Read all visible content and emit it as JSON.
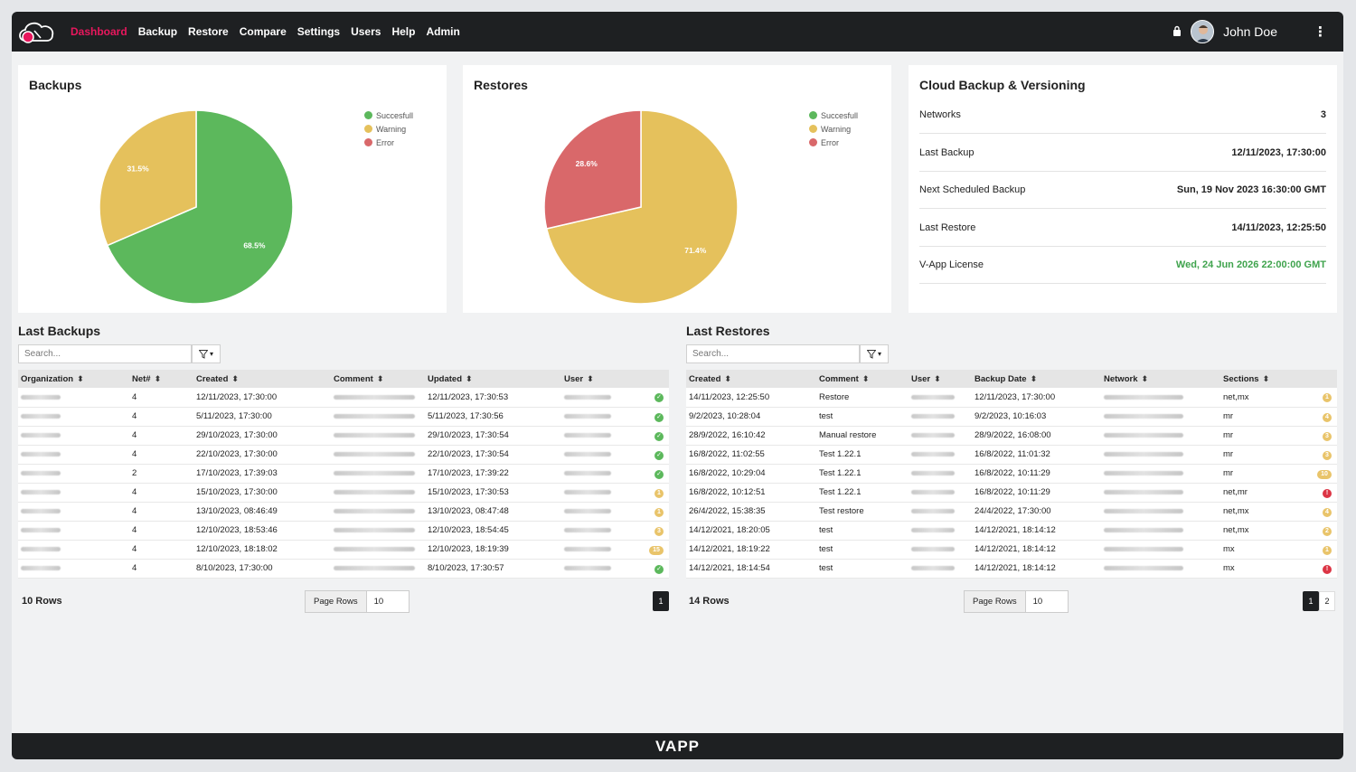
{
  "nav": {
    "items": [
      {
        "label": "Dashboard",
        "active": true
      },
      {
        "label": "Backup"
      },
      {
        "label": "Restore"
      },
      {
        "label": "Compare"
      },
      {
        "label": "Settings"
      },
      {
        "label": "Users"
      },
      {
        "label": "Help"
      },
      {
        "label": "Admin"
      }
    ],
    "user_name": "John Doe",
    "icons": [
      "lock-icon",
      "avatar",
      "kebab-menu-icon"
    ]
  },
  "colors": {
    "success": "#5cb85c",
    "warning": "#e5c15c",
    "error": "#d9686a",
    "accent": "#e8175d",
    "dark": "#1e2022",
    "license_green": "#3fa34d"
  },
  "backups_card": {
    "title": "Backups"
  },
  "restores_card": {
    "title": "Restores"
  },
  "legend": [
    "Succesfull",
    "Warning",
    "Error"
  ],
  "chart_data": [
    {
      "type": "pie",
      "title": "Backups",
      "categories": [
        "Succesfull",
        "Warning",
        "Error"
      ],
      "values": [
        68.5,
        31.5,
        0
      ],
      "labels": [
        "68.5%",
        "31.5%",
        ""
      ],
      "legend": "top-right"
    },
    {
      "type": "pie",
      "title": "Restores",
      "categories": [
        "Succesfull",
        "Warning",
        "Error"
      ],
      "values": [
        0,
        71.4,
        28.6
      ],
      "labels": [
        "",
        "71.4%",
        "28.6%"
      ],
      "legend": "top-right"
    }
  ],
  "cloud": {
    "title": "Cloud Backup & Versioning",
    "rows": [
      {
        "label": "Networks",
        "value": "3"
      },
      {
        "label": "Last Backup",
        "value": "12/11/2023, 17:30:00"
      },
      {
        "label": "Next Scheduled Backup",
        "value": "Sun, 19 Nov 2023 16:30:00 GMT"
      },
      {
        "label": "Last Restore",
        "value": "14/11/2023, 12:25:50"
      },
      {
        "label": "V-App License",
        "value": "Wed, 24 Jun 2026 22:00:00 GMT",
        "highlight": true
      }
    ]
  },
  "last_backups": {
    "title": "Last Backups",
    "search_placeholder": "Search...",
    "columns": [
      "Organization",
      "Net#",
      "Created",
      "Comment",
      "Updated",
      "User"
    ],
    "rows": [
      {
        "net": "4",
        "created": "12/11/2023, 17:30:00",
        "updated": "12/11/2023, 17:30:53",
        "status": "ok",
        "badge": ""
      },
      {
        "net": "4",
        "created": "5/11/2023, 17:30:00",
        "updated": "5/11/2023, 17:30:56",
        "status": "ok",
        "badge": ""
      },
      {
        "net": "4",
        "created": "29/10/2023, 17:30:00",
        "updated": "29/10/2023, 17:30:54",
        "status": "ok",
        "badge": ""
      },
      {
        "net": "4",
        "created": "22/10/2023, 17:30:00",
        "updated": "22/10/2023, 17:30:54",
        "status": "ok",
        "badge": ""
      },
      {
        "net": "2",
        "created": "17/10/2023, 17:39:03",
        "updated": "17/10/2023, 17:39:22",
        "status": "ok",
        "badge": ""
      },
      {
        "net": "4",
        "created": "15/10/2023, 17:30:00",
        "updated": "15/10/2023, 17:30:53",
        "status": "warn",
        "badge": "1"
      },
      {
        "net": "4",
        "created": "13/10/2023, 08:46:49",
        "updated": "13/10/2023, 08:47:48",
        "status": "warn",
        "badge": "1"
      },
      {
        "net": "4",
        "created": "12/10/2023, 18:53:46",
        "updated": "12/10/2023, 18:54:45",
        "status": "warn",
        "badge": "3"
      },
      {
        "net": "4",
        "created": "12/10/2023, 18:18:02",
        "updated": "12/10/2023, 18:19:39",
        "status": "warn",
        "badge": "15"
      },
      {
        "net": "4",
        "created": "8/10/2023, 17:30:00",
        "updated": "8/10/2023, 17:30:57",
        "status": "ok",
        "badge": ""
      }
    ],
    "row_count": "10 Rows",
    "page_rows_label": "Page Rows",
    "page_rows_value": "10",
    "pages": [
      "1"
    ]
  },
  "last_restores": {
    "title": "Last Restores",
    "search_placeholder": "Search...",
    "columns": [
      "Created",
      "Comment",
      "User",
      "Backup Date",
      "Network",
      "Sections"
    ],
    "rows": [
      {
        "created": "14/11/2023, 12:25:50",
        "comment": "Restore",
        "backup_date": "12/11/2023, 17:30:00",
        "sections": "net,mx",
        "status": "warn",
        "badge": "1"
      },
      {
        "created": "9/2/2023, 10:28:04",
        "comment": "test",
        "backup_date": "9/2/2023, 10:16:03",
        "sections": "mr",
        "status": "warn",
        "badge": "4"
      },
      {
        "created": "28/9/2022, 16:10:42",
        "comment": "Manual restore",
        "backup_date": "28/9/2022, 16:08:00",
        "sections": "mr",
        "status": "warn",
        "badge": "3"
      },
      {
        "created": "16/8/2022, 11:02:55",
        "comment": "Test 1.22.1",
        "backup_date": "16/8/2022, 11:01:32",
        "sections": "mr",
        "status": "warn",
        "badge": "3"
      },
      {
        "created": "16/8/2022, 10:29:04",
        "comment": "Test 1.22.1",
        "backup_date": "16/8/2022, 10:11:29",
        "sections": "mr",
        "status": "warn",
        "badge": "10"
      },
      {
        "created": "16/8/2022, 10:12:51",
        "comment": "Test 1.22.1",
        "backup_date": "16/8/2022, 10:11:29",
        "sections": "net,mr",
        "status": "err",
        "badge": "!"
      },
      {
        "created": "26/4/2022, 15:38:35",
        "comment": "Test restore",
        "backup_date": "24/4/2022, 17:30:00",
        "sections": "net,mx",
        "status": "warn",
        "badge": "4"
      },
      {
        "created": "14/12/2021, 18:20:05",
        "comment": "test",
        "backup_date": "14/12/2021, 18:14:12",
        "sections": "net,mx",
        "status": "warn",
        "badge": "2"
      },
      {
        "created": "14/12/2021, 18:19:22",
        "comment": "test",
        "backup_date": "14/12/2021, 18:14:12",
        "sections": "mx",
        "status": "warn",
        "badge": "1"
      },
      {
        "created": "14/12/2021, 18:14:54",
        "comment": "test",
        "backup_date": "14/12/2021, 18:14:12",
        "sections": "mx",
        "status": "err",
        "badge": "!"
      }
    ],
    "row_count": "14 Rows",
    "page_rows_label": "Page Rows",
    "page_rows_value": "10",
    "pages": [
      "1",
      "2"
    ]
  },
  "footer": {
    "brand": "VAPP"
  }
}
